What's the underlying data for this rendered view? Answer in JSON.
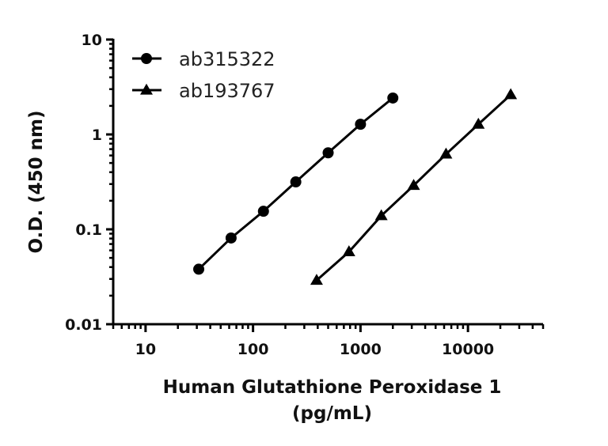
{
  "chart_data": {
    "type": "line",
    "title": "",
    "xlabel": "Human Glutathione Peroxidase 1 (pg/mL)",
    "xlabel_lines": [
      "Human Glutathione Peroxidase 1",
      "(pg/mL)"
    ],
    "ylabel": "O.D. (450 nm)",
    "xscale": "log",
    "yscale": "log",
    "xlim": [
      5,
      50000
    ],
    "ylim": [
      0.01,
      10
    ],
    "x_ticks": [
      10,
      100,
      1000,
      10000
    ],
    "x_tick_labels": [
      "10",
      "100",
      "1000",
      "10000"
    ],
    "y_ticks": [
      0.01,
      0.1,
      1,
      10
    ],
    "y_tick_labels": [
      "0.01",
      "0.1",
      "1",
      "10"
    ],
    "grid": false,
    "legend_position": "upper left",
    "series": [
      {
        "name": "ab315322",
        "marker": "circle",
        "color": "#000000",
        "x": [
          31.25,
          62.5,
          125,
          250,
          500,
          1000,
          2000
        ],
        "y": [
          0.038,
          0.081,
          0.155,
          0.316,
          0.64,
          1.28,
          2.42
        ]
      },
      {
        "name": "ab193767",
        "marker": "triangle",
        "color": "#000000",
        "x": [
          390.6,
          781.3,
          1562.5,
          3125,
          6250,
          12500,
          25000
        ],
        "y": [
          0.029,
          0.058,
          0.139,
          0.29,
          0.62,
          1.28,
          2.62
        ]
      }
    ]
  }
}
